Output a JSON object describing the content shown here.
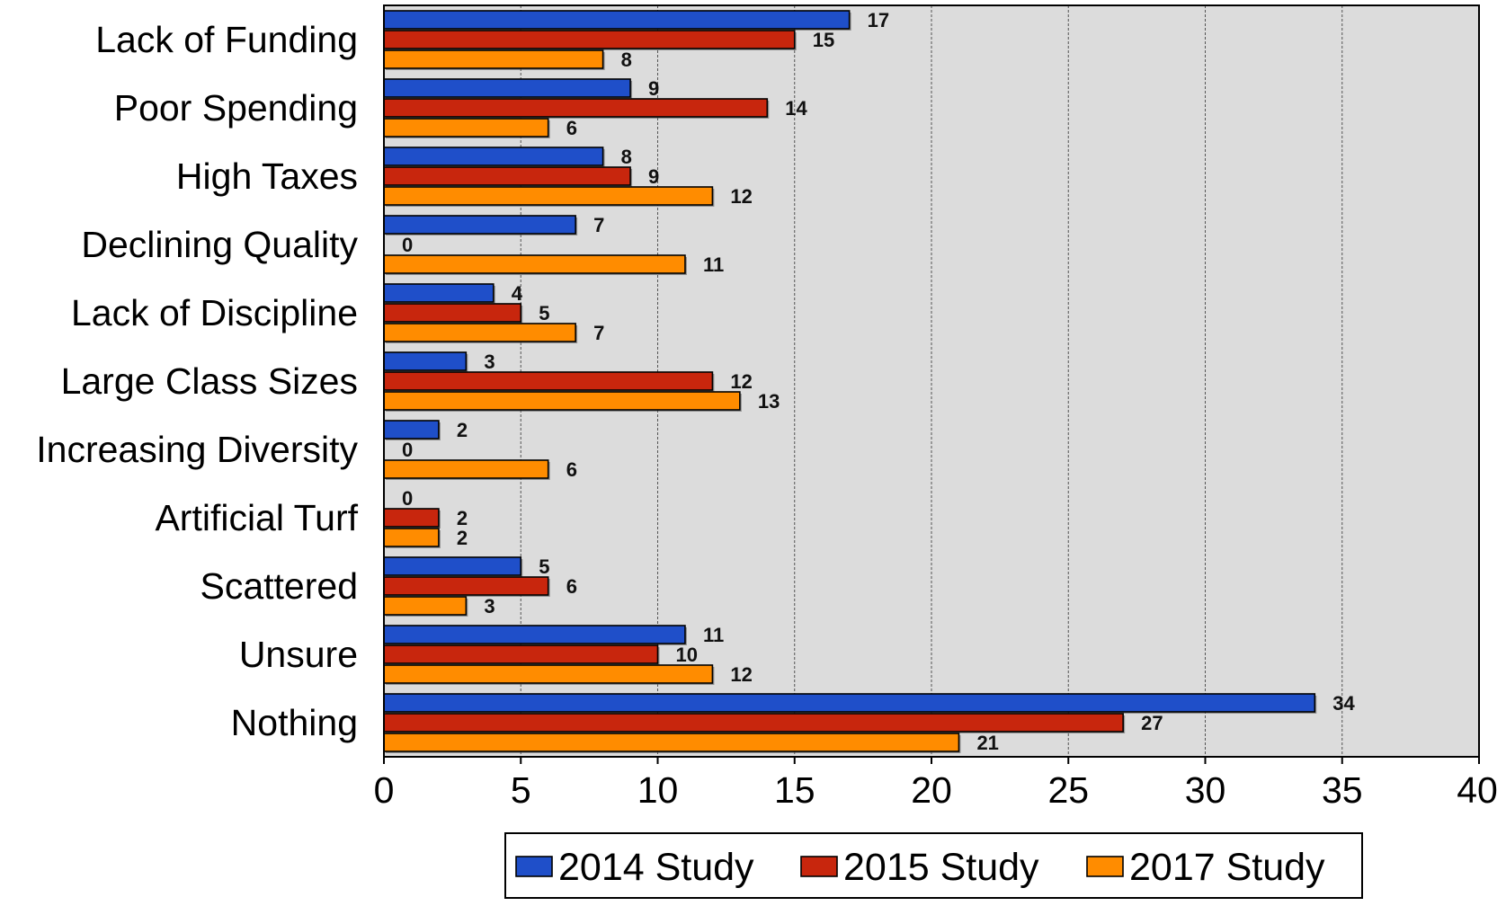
{
  "chart_data": {
    "type": "bar",
    "orientation": "horizontal",
    "categories": [
      "Lack of Funding",
      "Poor Spending",
      "High Taxes",
      "Declining Quality",
      "Lack of Discipline",
      "Large Class Sizes",
      "Increasing Diversity",
      "Artificial Turf",
      "Scattered",
      "Unsure",
      "Nothing"
    ],
    "series": [
      {
        "name": "2014 Study",
        "color": "#1f4fc9",
        "values": [
          17,
          9,
          8,
          7,
          4,
          3,
          2,
          0,
          5,
          11,
          34
        ]
      },
      {
        "name": "2015 Study",
        "color": "#c8260d",
        "values": [
          15,
          14,
          9,
          0,
          5,
          12,
          0,
          2,
          6,
          10,
          27
        ]
      },
      {
        "name": "2017 Study",
        "color": "#ff8c00",
        "values": [
          8,
          6,
          12,
          11,
          7,
          13,
          6,
          2,
          3,
          12,
          21
        ]
      }
    ],
    "xlim": [
      0,
      40
    ],
    "xticks": [
      0,
      5,
      10,
      15,
      20,
      25,
      30,
      35,
      40
    ],
    "grid": "vertical dashed",
    "legend_position": "bottom",
    "plot_background": "#dcdcdc",
    "data_labels": true
  }
}
